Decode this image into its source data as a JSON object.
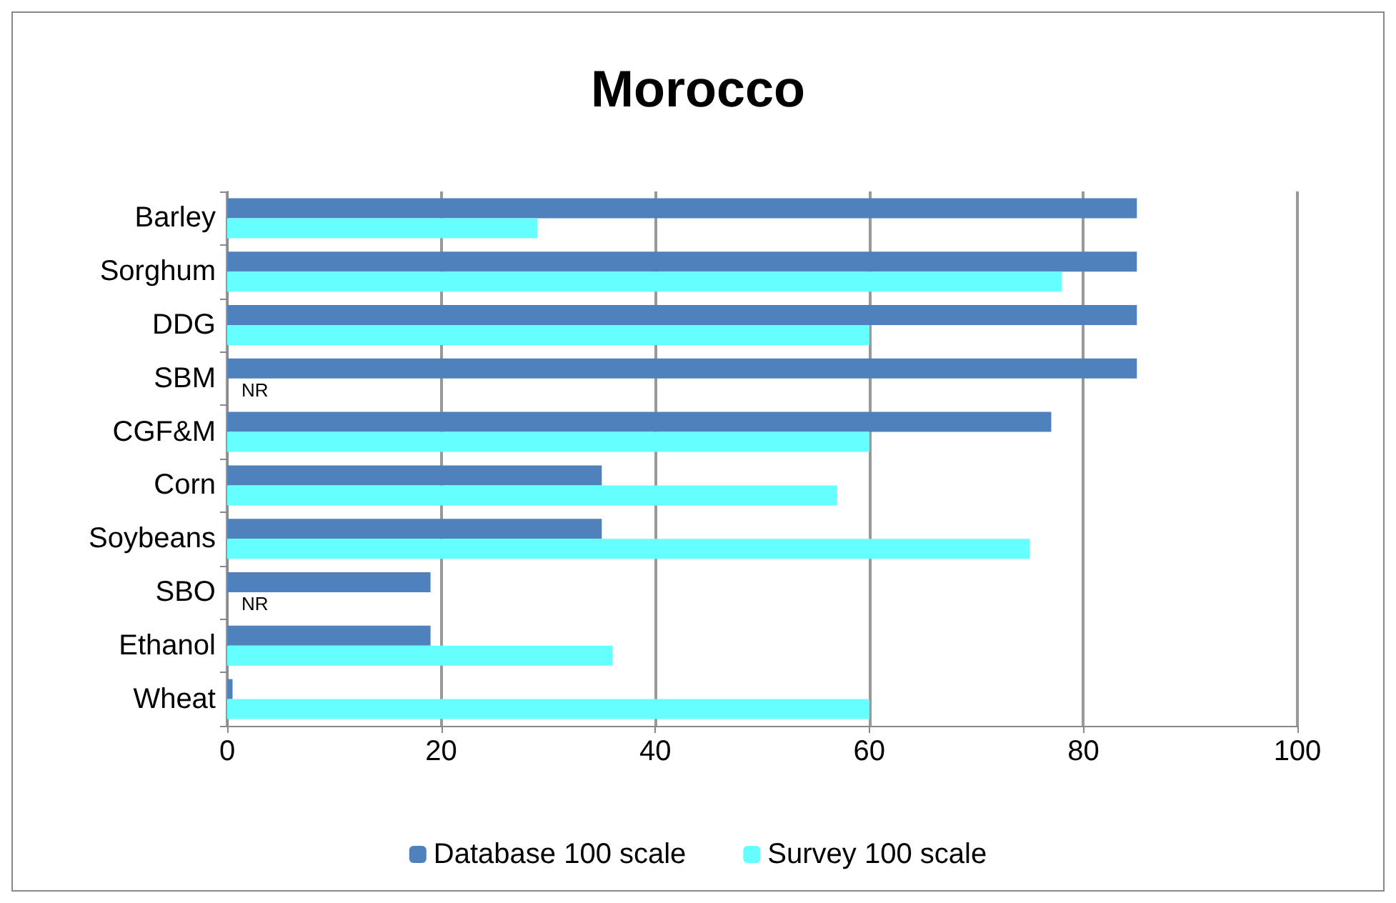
{
  "chart_data": {
    "type": "bar",
    "orientation": "horizontal",
    "title": "Morocco",
    "categories": [
      "Barley",
      "Sorghum",
      "DDG",
      "SBM",
      "CGF&M",
      "Corn",
      "Soybeans",
      "SBO",
      "Ethanol",
      "Wheat"
    ],
    "series": [
      {
        "name": "Database 100 scale",
        "color": "#4f81bd",
        "values": [
          85,
          85,
          85,
          85,
          77,
          35,
          35,
          19,
          19,
          0.5
        ]
      },
      {
        "name": "Survey 100 scale",
        "color": "#66ffff",
        "values": [
          29,
          78,
          60,
          0,
          60,
          57,
          75,
          0,
          36,
          60
        ]
      }
    ],
    "annotations": [
      {
        "text": "NR",
        "x": 0,
        "y": "SBM"
      },
      {
        "text": "NR",
        "x": 0,
        "y": "SBO"
      }
    ],
    "xlim": [
      0,
      100
    ],
    "xticks": [
      0,
      20,
      40,
      60,
      80,
      100
    ],
    "grid": "x",
    "legend": "bottom"
  }
}
